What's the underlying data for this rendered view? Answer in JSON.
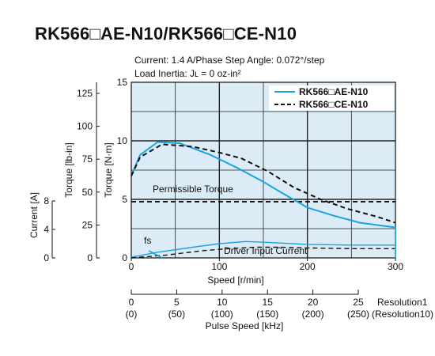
{
  "title": "RK566□AE-N10/RK566□CE-N10",
  "conditions": {
    "line1": "Current: 1.4 A/Phase   Step Angle: 0.072°/step",
    "line2": "Load Inertia: Jʟ = 0 oz-in²"
  },
  "colors": {
    "plot_bg": "#dcecf7",
    "ae_series": "#1aa3e0",
    "ce_series": "#111111",
    "grid": "#222222"
  },
  "chart_data": {
    "type": "line",
    "xlabel": "Speed [r/min]",
    "xlim": [
      0,
      300
    ],
    "xticks": [
      "0",
      "100",
      "200",
      "300"
    ],
    "y_torque_nm": {
      "label": "Torque [N·m]",
      "lim": [
        0,
        15
      ],
      "ticks": [
        "0",
        "5",
        "10",
        "15"
      ]
    },
    "y_torque_lbin": {
      "label": "Torque [lb-in]",
      "ticks": [
        "0",
        "25",
        "50",
        "75",
        "100",
        "125"
      ]
    },
    "y_current": {
      "label": "Current [A]",
      "ticks": [
        "0",
        "4",
        "8"
      ]
    },
    "pulse_axis": {
      "label": "Pulse Speed [kHz]",
      "res1_label": "Resolution1",
      "res10_label": "(Resolution10)",
      "res1_ticks": [
        "0",
        "5",
        "10",
        "15",
        "20",
        "25"
      ],
      "res10_ticks": [
        "(0)",
        "(50)",
        "(100)",
        "(150)",
        "(200)",
        "(250)"
      ]
    },
    "series": [
      {
        "name": "RK566□AE-N10",
        "style": "solid",
        "x": [
          0,
          10,
          30,
          55,
          90,
          120,
          150,
          170,
          200,
          230,
          260,
          300
        ],
        "y": [
          7.0,
          8.8,
          9.9,
          9.8,
          8.8,
          7.7,
          6.5,
          5.6,
          4.3,
          3.6,
          3.0,
          2.6
        ]
      },
      {
        "name": "RK566□CE-N10",
        "style": "dashed",
        "x": [
          0,
          10,
          35,
          70,
          100,
          125,
          155,
          185,
          215,
          245,
          280,
          300
        ],
        "y": [
          7.0,
          8.6,
          9.7,
          9.5,
          9.0,
          8.5,
          7.4,
          6.0,
          5.0,
          4.2,
          3.5,
          3.0
        ]
      }
    ],
    "current_series": [
      {
        "name": "RK566□AE-N10",
        "style": "solid",
        "x": [
          0,
          30,
          70,
          100,
          130,
          150,
          200,
          250,
          300
        ],
        "y": [
          0.1,
          0.8,
          1.5,
          2.0,
          2.3,
          2.2,
          1.9,
          1.8,
          1.8
        ]
      },
      {
        "name": "RK566□CE-N10",
        "style": "dashed",
        "x": [
          0,
          40,
          80,
          110,
          140,
          170,
          200,
          250,
          300
        ],
        "y": [
          0.0,
          0.4,
          1.0,
          1.3,
          1.5,
          1.5,
          1.4,
          1.3,
          1.3
        ]
      }
    ],
    "fs_segment": {
      "x": [
        20,
        35
      ],
      "y": [
        1.0,
        0.0
      ]
    },
    "permissible_torque_nm": 4.8,
    "annotations": {
      "permissible": "Permissible Torque",
      "driver_current": "Driver Input Current",
      "fs": "fs"
    },
    "grid": true,
    "legend_position": "top-right"
  }
}
